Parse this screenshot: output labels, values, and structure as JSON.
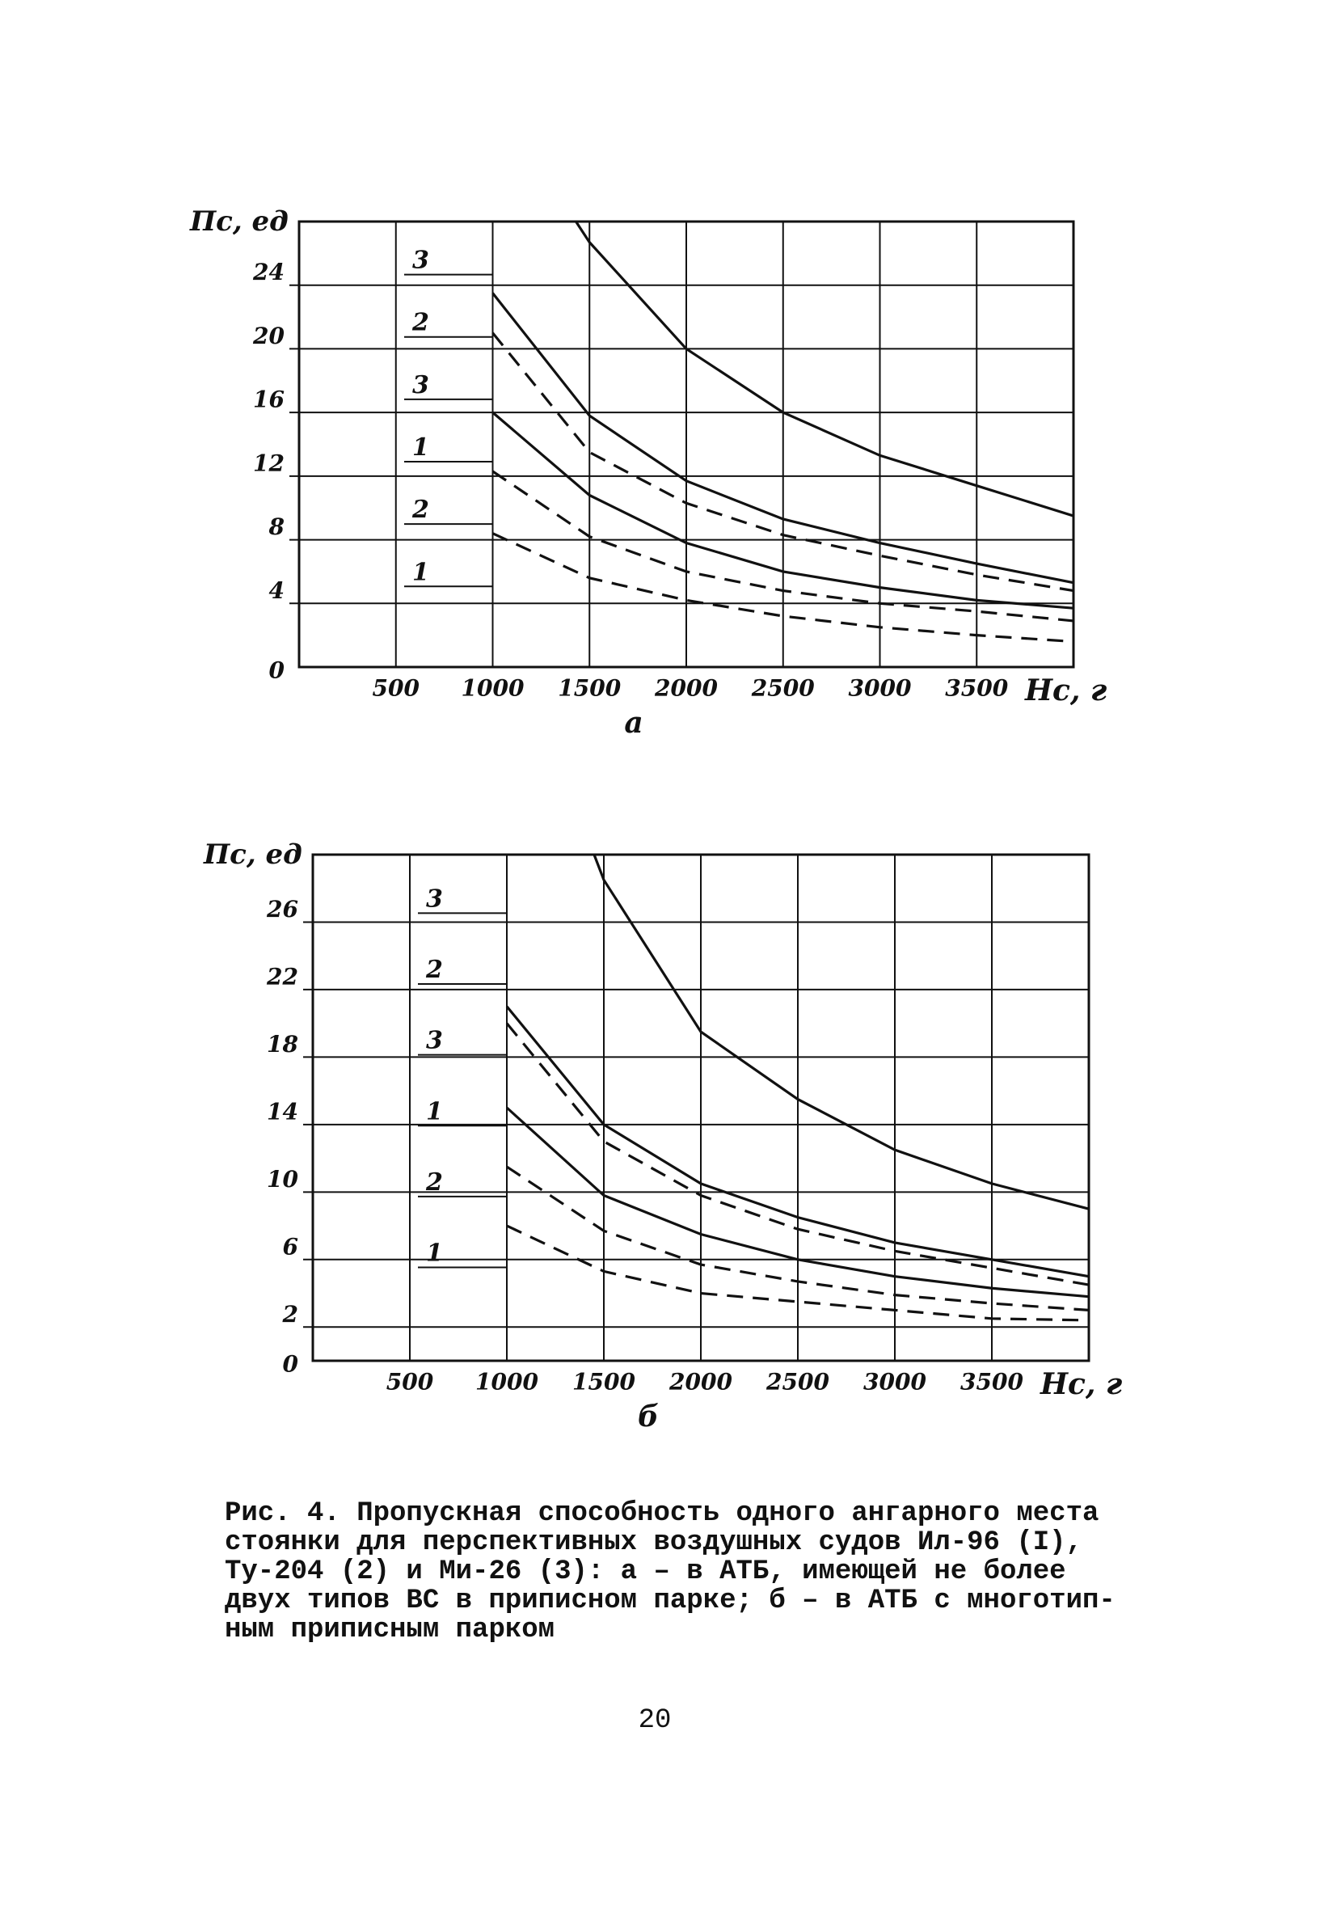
{
  "chart_data": [
    {
      "type": "line",
      "subtitle": "а",
      "y_label": "Пс, ед",
      "x_label": "Нс, г",
      "xlim": [
        0,
        4000
      ],
      "xticks": [
        500,
        1000,
        1500,
        2000,
        2500,
        3000,
        3500
      ],
      "ylim": [
        0,
        28
      ],
      "yticks": [
        0,
        4,
        8,
        12,
        16,
        20,
        24
      ],
      "grid": true,
      "series": [
        {
          "name": "3",
          "color": "#111111",
          "dashed": false,
          "x": [
            1430,
            1500,
            2000,
            2500,
            3000,
            3500,
            4000
          ],
          "values": [
            28,
            26.7,
            20,
            16,
            13.3,
            11.4,
            9.5
          ]
        },
        {
          "name": "2",
          "color": "#111111",
          "dashed": false,
          "x": [
            1000,
            1500,
            2000,
            2500,
            3000,
            3500,
            4000
          ],
          "values": [
            23.5,
            15.8,
            11.7,
            9.3,
            7.8,
            6.5,
            5.3
          ]
        },
        {
          "name": "3",
          "color": "#111111",
          "dashed": true,
          "x": [
            1000,
            1500,
            2000,
            2500,
            3000,
            3500,
            4000
          ],
          "values": [
            21,
            13.5,
            10.3,
            8.3,
            7,
            5.8,
            4.8
          ]
        },
        {
          "name": "1",
          "color": "#111111",
          "dashed": false,
          "x": [
            1000,
            1500,
            2000,
            2500,
            3000,
            3500,
            4000
          ],
          "values": [
            16,
            10.8,
            7.8,
            6,
            5,
            4.2,
            3.7
          ]
        },
        {
          "name": "2",
          "color": "#111111",
          "dashed": true,
          "x": [
            1000,
            1500,
            2000,
            2500,
            3000,
            3500,
            4000
          ],
          "values": [
            12.3,
            8.2,
            6,
            4.8,
            4,
            3.5,
            2.9
          ]
        },
        {
          "name": "1",
          "color": "#111111",
          "dashed": true,
          "x": [
            1000,
            1500,
            2000,
            2500,
            3000,
            3500,
            4000
          ],
          "values": [
            8.4,
            5.6,
            4.2,
            3.2,
            2.5,
            2,
            1.6
          ]
        }
      ]
    },
    {
      "type": "line",
      "subtitle": "б",
      "y_label": "Пс, ед",
      "x_label": "Нс, г",
      "xlim": [
        0,
        4000
      ],
      "xticks": [
        500,
        1000,
        1500,
        2000,
        2500,
        3000,
        3500
      ],
      "ylim": [
        0,
        30
      ],
      "yticks": [
        0,
        2,
        6,
        10,
        14,
        18,
        22,
        26
      ],
      "grid": true,
      "series": [
        {
          "name": "3",
          "color": "#111111",
          "dashed": false,
          "x": [
            1450,
            1500,
            2000,
            2500,
            3000,
            3500,
            4000
          ],
          "values": [
            30,
            28.5,
            19.5,
            15.5,
            12.5,
            10.5,
            9
          ]
        },
        {
          "name": "2",
          "color": "#111111",
          "dashed": false,
          "x": [
            1000,
            1500,
            2000,
            2500,
            3000,
            3500,
            4000
          ],
          "values": [
            21,
            14,
            10.5,
            8.5,
            7,
            6,
            5
          ]
        },
        {
          "name": "3",
          "color": "#111111",
          "dashed": true,
          "x": [
            1000,
            1500,
            2000,
            2500,
            3000,
            3500,
            4000
          ],
          "values": [
            20,
            13,
            9.8,
            7.8,
            6.5,
            5.5,
            4.5
          ]
        },
        {
          "name": "1",
          "color": "#111111",
          "dashed": false,
          "x": [
            1000,
            1500,
            2000,
            2500,
            3000,
            3500,
            4000
          ],
          "values": [
            15,
            9.8,
            7.5,
            6,
            5,
            4.3,
            3.8
          ]
        },
        {
          "name": "2",
          "color": "#111111",
          "dashed": true,
          "x": [
            1000,
            1500,
            2000,
            2500,
            3000,
            3500,
            4000
          ],
          "values": [
            11.5,
            7.7,
            5.7,
            4.7,
            3.9,
            3.4,
            3
          ]
        },
        {
          "name": "1",
          "color": "#111111",
          "dashed": true,
          "x": [
            1000,
            1500,
            2000,
            2500,
            3000,
            3500,
            4000
          ],
          "values": [
            8,
            5.3,
            4,
            3.5,
            3,
            2.5,
            2.4
          ]
        }
      ]
    }
  ],
  "caption": {
    "lines": [
      "Рис. 4. Пропускная способность одного ангарного места",
      "стоянки для перспективных воздушных судов Ил-96 (I),",
      "Ту-204 (2) и Ми-26 (3): а – в АТБ, имеющей не более",
      "двух типов ВС в приписном парке; б – в АТБ с многотип-",
      "ным приписным парком"
    ]
  },
  "page_number": "20"
}
